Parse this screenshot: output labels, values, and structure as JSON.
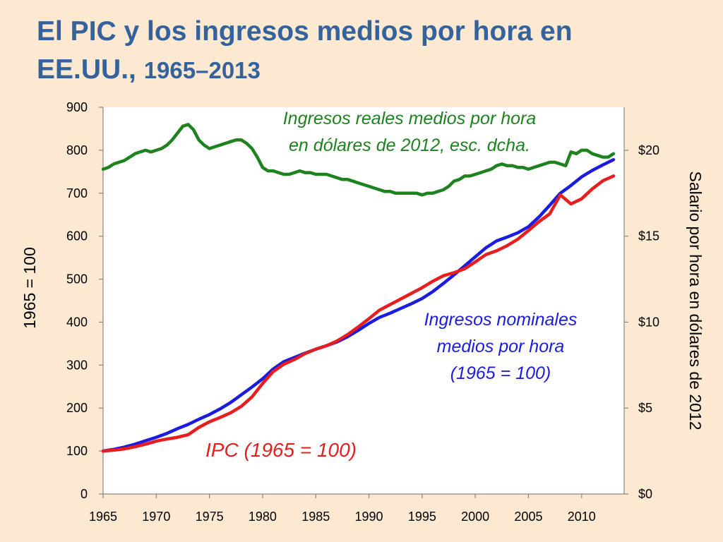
{
  "title": {
    "line1": "El PIC y los ingresos medios por hora en",
    "line2_a": "EE.UU., ",
    "line2_b": "1965–2013"
  },
  "colors": {
    "background": "#fde9d2",
    "title": "#33629c",
    "nominal_wages": "#1c1ce0",
    "cpi": "#e61e1e",
    "real_wages": "#1e821e"
  },
  "chart_data": {
    "type": "line",
    "xlim": [
      1965,
      2014
    ],
    "ylim_left": [
      0,
      900
    ],
    "ylim_right": [
      0,
      22.5
    ],
    "x_ticks": [
      "1965",
      "1970",
      "1975",
      "1980",
      "1985",
      "1990",
      "1995",
      "2000",
      "2005",
      "2010"
    ],
    "y_ticks_left": [
      "0",
      "100",
      "200",
      "300",
      "400",
      "500",
      "600",
      "700",
      "800",
      "900"
    ],
    "y_ticks_right": [
      "$0",
      "$5",
      "$10",
      "$15",
      "$20"
    ],
    "ylabel_left": "1965 = 100",
    "ylabel_right": "Salario por hora en dólares de 2012",
    "grid": false,
    "annotations": {
      "real": [
        "Ingresos reales medios por hora",
        "en dólares de 2012, esc. dcha."
      ],
      "nominal": [
        "Ingresos nominales",
        "medios por hora",
        "(1965 = 100)"
      ],
      "cpi": "IPC (1965 = 100)"
    },
    "series": [
      {
        "key": "nominal",
        "axis": "left",
        "points": [
          [
            1965,
            100
          ],
          [
            1966,
            104
          ],
          [
            1967,
            109
          ],
          [
            1968,
            116
          ],
          [
            1969,
            124
          ],
          [
            1970,
            132
          ],
          [
            1971,
            141
          ],
          [
            1972,
            152
          ],
          [
            1973,
            162
          ],
          [
            1974,
            174
          ],
          [
            1975,
            185
          ],
          [
            1976,
            198
          ],
          [
            1977,
            213
          ],
          [
            1978,
            231
          ],
          [
            1979,
            249
          ],
          [
            1980,
            268
          ],
          [
            1981,
            291
          ],
          [
            1982,
            308
          ],
          [
            1983,
            318
          ],
          [
            1984,
            328
          ],
          [
            1985,
            337
          ],
          [
            1986,
            345
          ],
          [
            1987,
            354
          ],
          [
            1988,
            366
          ],
          [
            1989,
            381
          ],
          [
            1990,
            397
          ],
          [
            1991,
            411
          ],
          [
            1992,
            421
          ],
          [
            1993,
            432
          ],
          [
            1994,
            443
          ],
          [
            1995,
            455
          ],
          [
            1996,
            471
          ],
          [
            1997,
            490
          ],
          [
            1998,
            510
          ],
          [
            1999,
            531
          ],
          [
            2000,
            552
          ],
          [
            2001,
            573
          ],
          [
            2002,
            589
          ],
          [
            2003,
            598
          ],
          [
            2004,
            608
          ],
          [
            2005,
            622
          ],
          [
            2006,
            645
          ],
          [
            2007,
            672
          ],
          [
            2008,
            700
          ],
          [
            2009,
            718
          ],
          [
            2010,
            738
          ],
          [
            2011,
            753
          ],
          [
            2012,
            766
          ],
          [
            2013,
            778
          ]
        ]
      },
      {
        "key": "cpi",
        "axis": "left",
        "points": [
          [
            1965,
            100
          ],
          [
            1966,
            102
          ],
          [
            1967,
            105
          ],
          [
            1968,
            110
          ],
          [
            1969,
            116
          ],
          [
            1970,
            123
          ],
          [
            1971,
            128
          ],
          [
            1972,
            132
          ],
          [
            1973,
            138
          ],
          [
            1974,
            155
          ],
          [
            1975,
            168
          ],
          [
            1976,
            178
          ],
          [
            1977,
            189
          ],
          [
            1978,
            204
          ],
          [
            1979,
            226
          ],
          [
            1980,
            257
          ],
          [
            1981,
            285
          ],
          [
            1982,
            302
          ],
          [
            1983,
            313
          ],
          [
            1984,
            327
          ],
          [
            1985,
            337
          ],
          [
            1986,
            345
          ],
          [
            1987,
            356
          ],
          [
            1988,
            371
          ],
          [
            1989,
            389
          ],
          [
            1990,
            408
          ],
          [
            1991,
            428
          ],
          [
            1992,
            441
          ],
          [
            1993,
            454
          ],
          [
            1994,
            467
          ],
          [
            1995,
            480
          ],
          [
            1996,
            495
          ],
          [
            1997,
            508
          ],
          [
            1998,
            515
          ],
          [
            1999,
            524
          ],
          [
            2000,
            540
          ],
          [
            2001,
            557
          ],
          [
            2002,
            566
          ],
          [
            2003,
            578
          ],
          [
            2004,
            593
          ],
          [
            2005,
            613
          ],
          [
            2006,
            634
          ],
          [
            2007,
            652
          ],
          [
            2008,
            696
          ],
          [
            2009,
            675
          ],
          [
            2010,
            687
          ],
          [
            2011,
            710
          ],
          [
            2012,
            729
          ],
          [
            2013,
            740
          ]
        ]
      },
      {
        "key": "real",
        "axis": "right",
        "points": [
          [
            1965,
            18.9
          ],
          [
            1965.5,
            19.0
          ],
          [
            1966,
            19.2
          ],
          [
            1966.5,
            19.3
          ],
          [
            1967,
            19.4
          ],
          [
            1967.5,
            19.6
          ],
          [
            1968,
            19.8
          ],
          [
            1968.5,
            19.9
          ],
          [
            1969,
            20.0
          ],
          [
            1969.5,
            19.9
          ],
          [
            1970,
            20.0
          ],
          [
            1970.5,
            20.1
          ],
          [
            1971,
            20.3
          ],
          [
            1971.5,
            20.6
          ],
          [
            1972,
            21.0
          ],
          [
            1972.5,
            21.4
          ],
          [
            1973,
            21.5
          ],
          [
            1973.5,
            21.2
          ],
          [
            1974,
            20.6
          ],
          [
            1974.5,
            20.3
          ],
          [
            1975,
            20.1
          ],
          [
            1975.5,
            20.2
          ],
          [
            1976,
            20.3
          ],
          [
            1976.5,
            20.4
          ],
          [
            1977,
            20.5
          ],
          [
            1977.5,
            20.6
          ],
          [
            1978,
            20.6
          ],
          [
            1978.5,
            20.4
          ],
          [
            1979,
            20.1
          ],
          [
            1979.5,
            19.6
          ],
          [
            1980,
            19.0
          ],
          [
            1980.5,
            18.8
          ],
          [
            1981,
            18.8
          ],
          [
            1981.5,
            18.7
          ],
          [
            1982,
            18.6
          ],
          [
            1982.5,
            18.6
          ],
          [
            1983,
            18.7
          ],
          [
            1983.5,
            18.8
          ],
          [
            1984,
            18.7
          ],
          [
            1984.5,
            18.7
          ],
          [
            1985,
            18.6
          ],
          [
            1985.5,
            18.6
          ],
          [
            1986,
            18.6
          ],
          [
            1986.5,
            18.5
          ],
          [
            1987,
            18.4
          ],
          [
            1987.5,
            18.3
          ],
          [
            1988,
            18.3
          ],
          [
            1988.5,
            18.2
          ],
          [
            1989,
            18.1
          ],
          [
            1989.5,
            18.0
          ],
          [
            1990,
            17.9
          ],
          [
            1990.5,
            17.8
          ],
          [
            1991,
            17.7
          ],
          [
            1991.5,
            17.6
          ],
          [
            1992,
            17.6
          ],
          [
            1992.5,
            17.5
          ],
          [
            1993,
            17.5
          ],
          [
            1993.5,
            17.5
          ],
          [
            1994,
            17.5
          ],
          [
            1994.5,
            17.5
          ],
          [
            1995,
            17.4
          ],
          [
            1995.5,
            17.5
          ],
          [
            1996,
            17.5
          ],
          [
            1996.5,
            17.6
          ],
          [
            1997,
            17.7
          ],
          [
            1997.5,
            17.9
          ],
          [
            1998,
            18.2
          ],
          [
            1998.5,
            18.3
          ],
          [
            1999,
            18.5
          ],
          [
            1999.5,
            18.5
          ],
          [
            2000,
            18.6
          ],
          [
            2000.5,
            18.7
          ],
          [
            2001,
            18.8
          ],
          [
            2001.5,
            18.9
          ],
          [
            2002,
            19.1
          ],
          [
            2002.5,
            19.2
          ],
          [
            2003,
            19.1
          ],
          [
            2003.5,
            19.1
          ],
          [
            2004,
            19.0
          ],
          [
            2004.5,
            19.0
          ],
          [
            2005,
            18.9
          ],
          [
            2005.5,
            19.0
          ],
          [
            2006,
            19.1
          ],
          [
            2006.5,
            19.2
          ],
          [
            2007,
            19.3
          ],
          [
            2007.5,
            19.3
          ],
          [
            2008,
            19.2
          ],
          [
            2008.5,
            19.1
          ],
          [
            2009,
            19.9
          ],
          [
            2009.5,
            19.8
          ],
          [
            2010,
            20.0
          ],
          [
            2010.5,
            20.0
          ],
          [
            2011,
            19.8
          ],
          [
            2011.5,
            19.7
          ],
          [
            2012,
            19.6
          ],
          [
            2012.5,
            19.6
          ],
          [
            2013,
            19.8
          ]
        ]
      }
    ]
  }
}
